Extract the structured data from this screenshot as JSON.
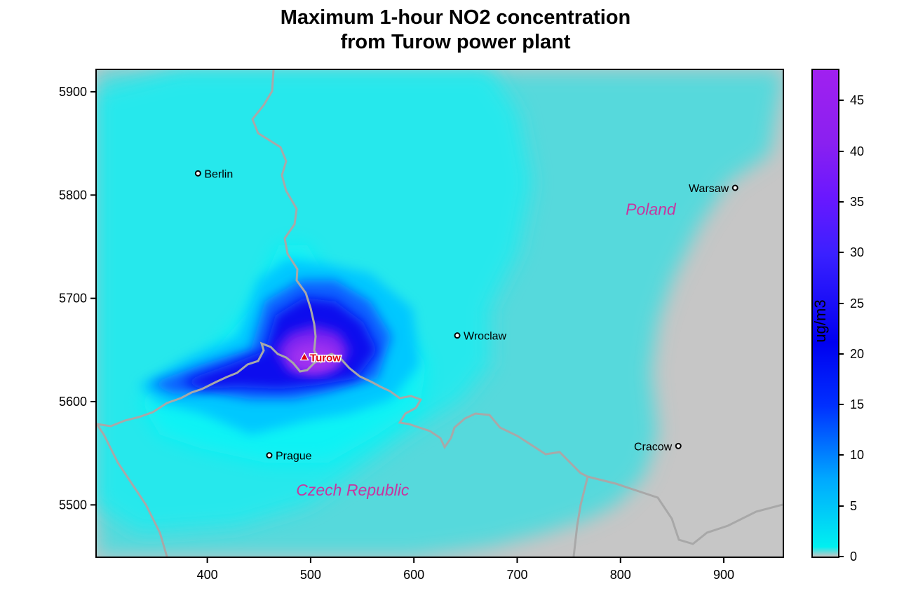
{
  "title": {
    "line1": "Maximum 1-hour NO2 concentration",
    "line2": "from Turow power plant"
  },
  "colorbar": {
    "unit": "ug/m3",
    "ticks": [
      "0",
      "5",
      "10",
      "15",
      "20",
      "25",
      "30",
      "35",
      "40",
      "45"
    ],
    "range": [
      0,
      48
    ],
    "colors": [
      "#c6c6c6",
      "#00f0f0",
      "#00a8ff",
      "#0030ff",
      "#0000f0",
      "#3a20ff",
      "#6a18ff",
      "#8a20f0",
      "#a020f0"
    ]
  },
  "axes": {
    "x_ticks": [
      "400",
      "500",
      "600",
      "700",
      "800",
      "900"
    ],
    "y_ticks": [
      "5900",
      "5800",
      "5700",
      "5600",
      "5500"
    ],
    "x_range": [
      293,
      957
    ],
    "y_range": [
      5450,
      5921
    ]
  },
  "cities": [
    {
      "name": "Berlin",
      "x": 391,
      "y": 5821
    },
    {
      "name": "Warsaw",
      "x": 911,
      "y": 5807
    },
    {
      "name": "Wroclaw",
      "x": 642,
      "y": 5664
    },
    {
      "name": "Prague",
      "x": 460,
      "y": 5548
    },
    {
      "name": "Cracow",
      "x": 856,
      "y": 5557
    }
  ],
  "source": {
    "name": "Turow",
    "x": 494,
    "y": 5643
  },
  "countries": [
    {
      "name": "Poland",
      "x": 805,
      "y": 5781
    },
    {
      "name": "Czech Republic",
      "x": 486,
      "y": 5509
    }
  ],
  "colors": {
    "background_gray": "#c6c6c6",
    "cyan": "#2ee6ea",
    "border_line": "#a8a8a8",
    "country_label": "#c8359f",
    "source_marker": "#e0000f"
  }
}
